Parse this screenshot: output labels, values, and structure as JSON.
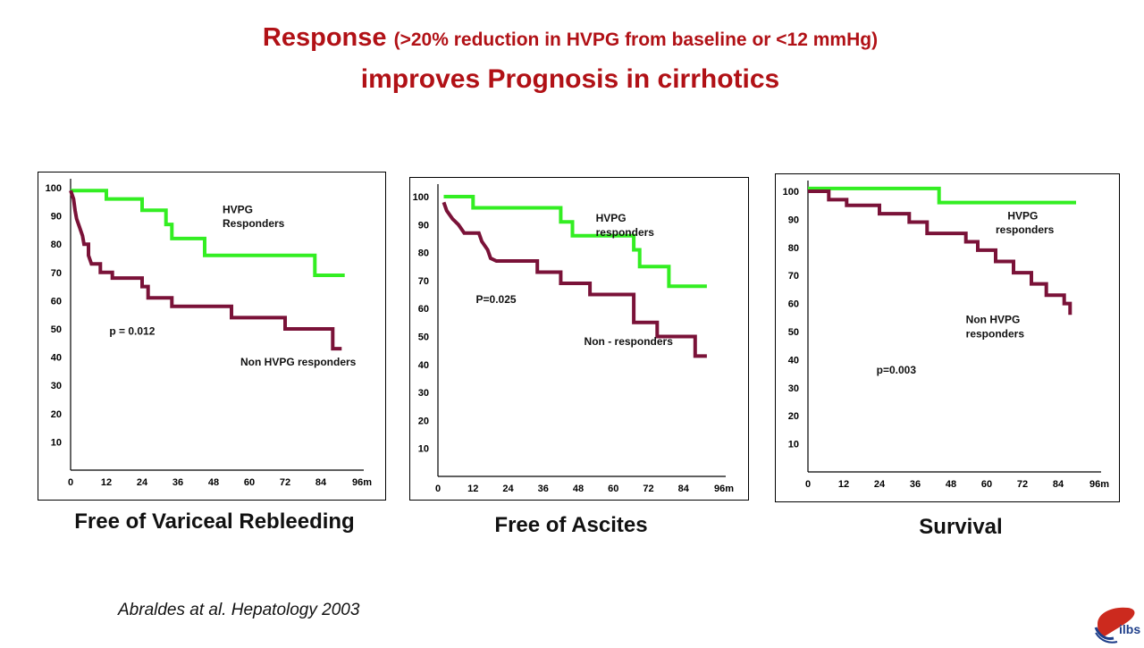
{
  "slide": {
    "title_main": "Response",
    "title_paren": "(>20% reduction in HVPG from baseline or <12 mmHg)",
    "title_line2": "improves Prognosis in cirrhotics",
    "citation": "Abraldes at al. Hepatology 2003",
    "logo_text": "ilbs",
    "colors": {
      "title": "#b11116",
      "responders": "#33ee22",
      "non_responders": "#7a1238",
      "logo": "#1f3f8a"
    }
  },
  "chart_data": [
    {
      "type": "line",
      "caption": "Free of Variceal Rebleeding",
      "x_ticks": [
        "0",
        "12",
        "24",
        "36",
        "48",
        "60",
        "72",
        "84",
        "96m"
      ],
      "y_ticks": [
        "100",
        "90",
        "80",
        "70",
        "60",
        "50",
        "40",
        "30",
        "20",
        "10"
      ],
      "xlim": [
        0,
        96
      ],
      "ylim": [
        0,
        100
      ],
      "annotations": [
        {
          "text": "HVPG",
          "x": 51,
          "y": 91
        },
        {
          "text": "Responders",
          "x": 51,
          "y": 86
        },
        {
          "text": "p = 0.012",
          "x": 13,
          "y": 48
        },
        {
          "text": "Non HVPG responders",
          "x": 57,
          "y": 37
        }
      ],
      "series": [
        {
          "key": "responders",
          "values": [
            [
              0,
              99
            ],
            [
              12,
              99
            ],
            [
              12,
              96
            ],
            [
              24,
              96
            ],
            [
              24,
              92
            ],
            [
              32,
              92
            ],
            [
              32,
              87
            ],
            [
              34,
              87
            ],
            [
              34,
              82
            ],
            [
              45,
              82
            ],
            [
              45,
              76
            ],
            [
              82,
              76
            ],
            [
              82,
              69
            ],
            [
              92,
              69
            ]
          ]
        },
        {
          "key": "non_responders",
          "values": [
            [
              0,
              99
            ],
            [
              1,
              96
            ],
            [
              1.5,
              92
            ],
            [
              2,
              89
            ],
            [
              3,
              86
            ],
            [
              4,
              83
            ],
            [
              4.5,
              80
            ],
            [
              6,
              80
            ],
            [
              6,
              76
            ],
            [
              7,
              73
            ],
            [
              10,
              73
            ],
            [
              10,
              70
            ],
            [
              14,
              70
            ],
            [
              14,
              68
            ],
            [
              24,
              68
            ],
            [
              24,
              65
            ],
            [
              26,
              65
            ],
            [
              26,
              61
            ],
            [
              34,
              61
            ],
            [
              34,
              58
            ],
            [
              54,
              58
            ],
            [
              54,
              54
            ],
            [
              72,
              54
            ],
            [
              72,
              50
            ],
            [
              88,
              50
            ],
            [
              88,
              43
            ],
            [
              91,
              43
            ]
          ]
        }
      ]
    },
    {
      "type": "line",
      "caption": "Free of Ascites",
      "x_ticks": [
        "0",
        "12",
        "24",
        "36",
        "48",
        "60",
        "72",
        "84",
        "96m"
      ],
      "y_ticks": [
        "100",
        "90",
        "80",
        "70",
        "60",
        "50",
        "40",
        "30",
        "20",
        "10"
      ],
      "xlim": [
        0,
        96
      ],
      "ylim": [
        0,
        100
      ],
      "annotations": [
        {
          "text": "HVPG",
          "x": 54,
          "y": 91
        },
        {
          "text": "responders",
          "x": 54,
          "y": 86
        },
        {
          "text": "P=0.025",
          "x": 13,
          "y": 62
        },
        {
          "text": "Non - responders",
          "x": 50,
          "y": 47
        }
      ],
      "series": [
        {
          "key": "responders",
          "values": [
            [
              2,
              100
            ],
            [
              12,
              100
            ],
            [
              12,
              96
            ],
            [
              42,
              96
            ],
            [
              42,
              91
            ],
            [
              46,
              91
            ],
            [
              46,
              86
            ],
            [
              67,
              86
            ],
            [
              67,
              81
            ],
            [
              69,
              81
            ],
            [
              69,
              75
            ],
            [
              79,
              75
            ],
            [
              79,
              68
            ],
            [
              92,
              68
            ]
          ]
        },
        {
          "key": "non_responders",
          "values": [
            [
              2,
              98
            ],
            [
              3,
              95
            ],
            [
              5,
              92
            ],
            [
              7,
              90
            ],
            [
              9,
              87
            ],
            [
              14,
              87
            ],
            [
              15,
              84
            ],
            [
              17,
              81
            ],
            [
              18,
              78
            ],
            [
              20,
              77
            ],
            [
              34,
              77
            ],
            [
              34,
              73
            ],
            [
              42,
              73
            ],
            [
              42,
              69
            ],
            [
              52,
              69
            ],
            [
              52,
              65
            ],
            [
              67,
              65
            ],
            [
              67,
              55
            ],
            [
              75,
              55
            ],
            [
              75,
              50
            ],
            [
              88,
              50
            ],
            [
              88,
              43
            ],
            [
              92,
              43
            ]
          ]
        }
      ]
    },
    {
      "type": "line",
      "caption": "Survival",
      "x_ticks": [
        "0",
        "12",
        "24",
        "36",
        "48",
        "60",
        "72",
        "84",
        "96m"
      ],
      "y_ticks": [
        "100",
        "90",
        "80",
        "70",
        "60",
        "50",
        "40",
        "30",
        "20",
        "10"
      ],
      "xlim": [
        0,
        96
      ],
      "ylim": [
        0,
        100
      ],
      "annotations": [
        {
          "text": "HVPG",
          "x": 67,
          "y": 90
        },
        {
          "text": "responders",
          "x": 63,
          "y": 85
        },
        {
          "text": "Non HVPG",
          "x": 53,
          "y": 53
        },
        {
          "text": "responders",
          "x": 53,
          "y": 48
        },
        {
          "text": "p=0.003",
          "x": 23,
          "y": 35
        }
      ],
      "series": [
        {
          "key": "responders",
          "values": [
            [
              0,
              101
            ],
            [
              44,
              101
            ],
            [
              44,
              96
            ],
            [
              90,
              96
            ]
          ]
        },
        {
          "key": "non_responders",
          "values": [
            [
              0,
              100
            ],
            [
              7,
              100
            ],
            [
              7,
              97
            ],
            [
              13,
              97
            ],
            [
              13,
              95
            ],
            [
              24,
              95
            ],
            [
              24,
              92
            ],
            [
              34,
              92
            ],
            [
              34,
              89
            ],
            [
              40,
              89
            ],
            [
              40,
              85
            ],
            [
              53,
              85
            ],
            [
              53,
              82
            ],
            [
              57,
              82
            ],
            [
              57,
              79
            ],
            [
              63,
              79
            ],
            [
              63,
              75
            ],
            [
              69,
              75
            ],
            [
              69,
              71
            ],
            [
              75,
              71
            ],
            [
              75,
              67
            ],
            [
              80,
              67
            ],
            [
              80,
              63
            ],
            [
              86,
              63
            ],
            [
              86,
              60
            ],
            [
              88,
              60
            ],
            [
              88,
              56
            ]
          ]
        }
      ]
    }
  ]
}
